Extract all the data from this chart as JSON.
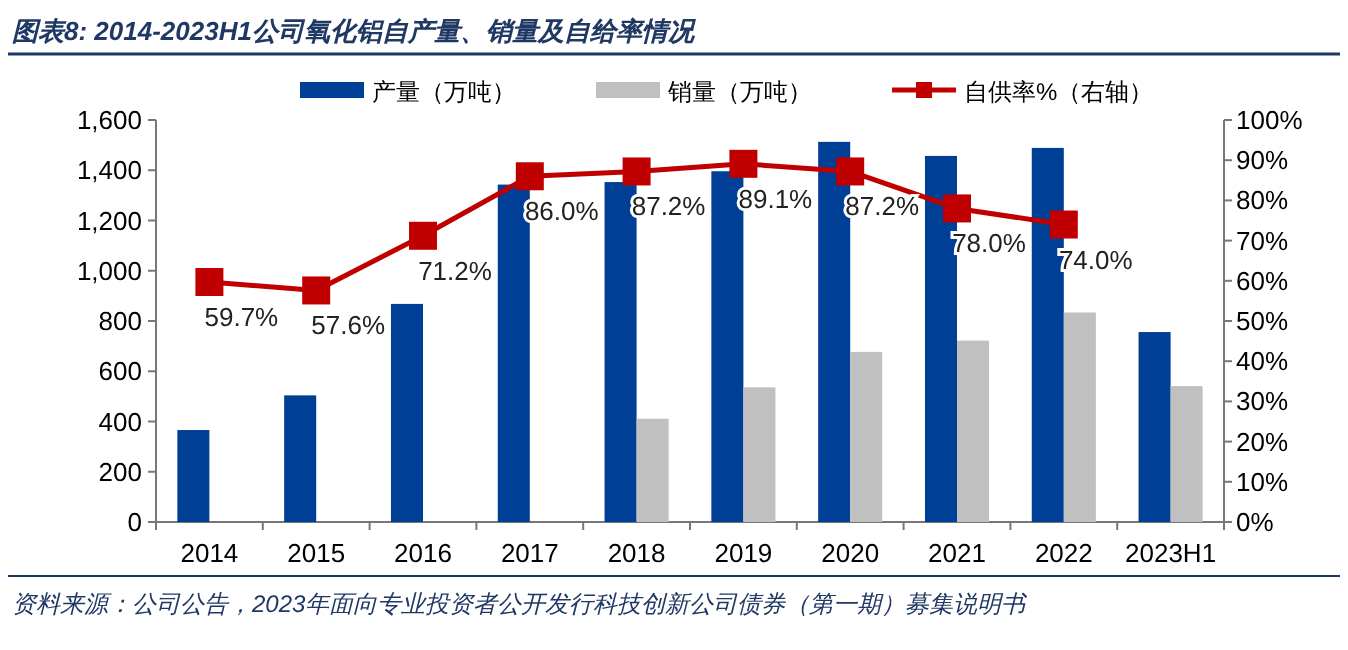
{
  "chart_data": {
    "type": "bar",
    "title": "图表8: 2014-2023H1公司氧化铝自产量、销量及自给率情况",
    "categories": [
      "2014",
      "2015",
      "2016",
      "2017",
      "2018",
      "2019",
      "2020",
      "2021",
      "2022",
      "2023H1"
    ],
    "series": [
      {
        "name": "产量（万吨）",
        "color": "#003f96",
        "values": [
          366,
          504,
          868,
          1343,
          1353,
          1396,
          1513,
          1457,
          1489,
          756
        ]
      },
      {
        "name": "销量（万吨）",
        "color": "#c0c0c0",
        "values": [
          null,
          null,
          null,
          null,
          411,
          536,
          677,
          722,
          834,
          541
        ]
      },
      {
        "name": "自供率%（右轴）",
        "type": "line",
        "axis": "y2",
        "color": "#c00000",
        "marker": "square",
        "values": [
          59.7,
          57.6,
          71.2,
          86.0,
          87.2,
          89.1,
          87.2,
          78.0,
          74.0,
          null
        ],
        "value_labels": [
          "59.7%",
          "57.6%",
          "71.2%",
          "86.0%",
          "87.2%",
          "89.1%",
          "87.2%",
          "78.0%",
          "74.0%",
          null
        ]
      }
    ],
    "ylim": [
      0,
      1600
    ],
    "yticks": [
      0,
      200,
      400,
      600,
      800,
      {
        "value": 1000,
        "label": "1,000"
      },
      {
        "value": 1200,
        "label": "1,200"
      },
      {
        "value": 1400,
        "label": "1,400"
      },
      {
        "value": 1600,
        "label": "1,600"
      }
    ],
    "y2lim": [
      0,
      100
    ],
    "y2ticks": [
      {
        "value": 0,
        "label": "0%"
      },
      {
        "value": 10,
        "label": "10%"
      },
      {
        "value": 20,
        "label": "20%"
      },
      {
        "value": 30,
        "label": "30%"
      },
      {
        "value": 40,
        "label": "40%"
      },
      {
        "value": 50,
        "label": "50%"
      },
      {
        "value": 60,
        "label": "60%"
      },
      {
        "value": 70,
        "label": "70%"
      },
      {
        "value": 80,
        "label": "80%"
      },
      {
        "value": 90,
        "label": "90%"
      },
      {
        "value": 100,
        "label": "100%"
      }
    ],
    "legend": "top",
    "annotations": [
      "资料来源：公司公告，2023年面向专业投资者公开发行科技创新公司债券（第一期）募集说明书"
    ]
  }
}
